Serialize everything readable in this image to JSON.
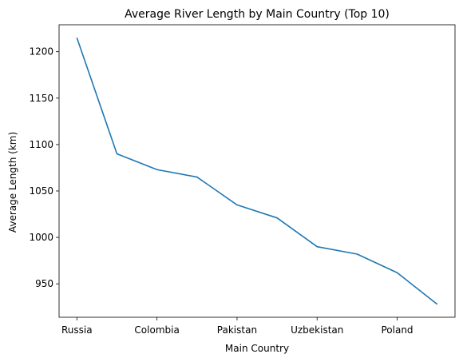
{
  "chart_data": {
    "type": "line",
    "title": "Average River Length by Main Country (Top 10)",
    "xlabel": "Main Country",
    "ylabel": "Average Length (km)",
    "categories": [
      "Russia",
      "",
      "Colombia",
      "",
      "Pakistan",
      "",
      "Uzbekistan",
      "",
      "Poland",
      ""
    ],
    "x_tick_labels": [
      "Russia",
      "Colombia",
      "Pakistan",
      "Uzbekistan",
      "Poland"
    ],
    "x_tick_indices": [
      0,
      2,
      4,
      6,
      8
    ],
    "values": [
      1215,
      1090,
      1073,
      1065,
      1035,
      1021,
      990,
      982,
      962,
      928
    ],
    "ylim": [
      914,
      1229
    ],
    "y_ticks": [
      950,
      1000,
      1050,
      1100,
      1150,
      1200
    ],
    "grid": false,
    "line_color": "#1f77b4"
  }
}
